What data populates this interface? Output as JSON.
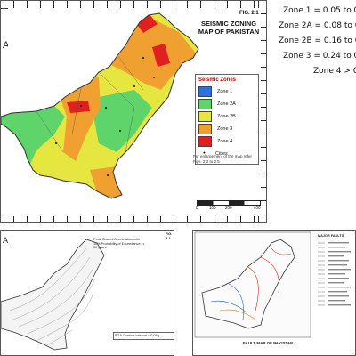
{
  "main_map": {
    "fig_label": "FIG. 2.1",
    "title": "SEISMIC ZONING MAP OF PAKISTAN",
    "partial_heading": "A",
    "legend_title": "Seismic Zones",
    "legend": [
      {
        "label": "Zone 1",
        "color": "#2f6fe0"
      },
      {
        "label": "Zone 2A",
        "color": "#5fd46a"
      },
      {
        "label": "Zone 2B",
        "color": "#e6e640"
      },
      {
        "label": "Zone 3",
        "color": "#f0a030"
      },
      {
        "label": "Zone 4",
        "color": "#e02020"
      }
    ],
    "cities_label": "Cities",
    "note": "For enlargement of the map refer Figs. 2.2 to 2.5",
    "scale_ticks": [
      "0",
      "100",
      "200",
      "400"
    ]
  },
  "zone_values": [
    "Zone 1 = 0.05 to 0",
    "Zone 2A = 0.08 to 0",
    "Zone 2B = 0.16 to 0",
    "Zone 3 = 0.24 to 0",
    "Zone 4 > 0"
  ],
  "pga_map": {
    "fig_label": "FIG. A.1",
    "title": "Peak Ground Acceleration with 10% Probability of Exceedance in 50 years",
    "legend_note": "PGA Contour Interval = 0.04g",
    "partial_heading": "A"
  },
  "fault_map": {
    "title": "FAULT MAP OF PAKISTAN",
    "legend_header": "MAJOR FAULTS"
  },
  "colors": {
    "land_zone1": "#2f6fe0",
    "land_zone2a": "#5fd46a",
    "land_zone2b": "#e6e640",
    "land_zone3": "#f0a030",
    "land_zone4": "#e02020",
    "boundary": "#333333"
  }
}
